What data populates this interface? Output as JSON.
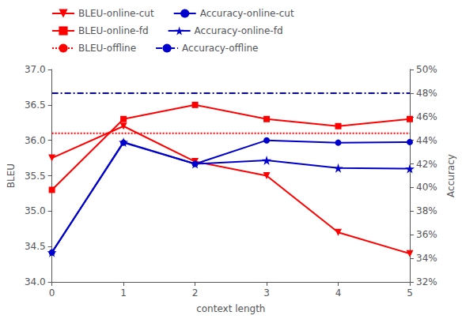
{
  "chart_data": {
    "type": "line",
    "xlabel": "context length",
    "ylabel": "BLEU",
    "y2label": "Accuracy",
    "x": [
      0,
      1,
      2,
      3,
      4,
      5
    ],
    "xlim": [
      0,
      5
    ],
    "xticks": [
      0,
      1,
      2,
      3,
      4,
      5
    ],
    "ylim": [
      34.0,
      37.0
    ],
    "yticks": [
      {
        "value": 34,
        "label": "34.0"
      },
      34.5,
      {
        "value": 35,
        "label": "35.0"
      },
      35.5,
      {
        "value": 36,
        "label": "36.0"
      },
      36.5,
      {
        "value": 37,
        "label": "37.0"
      }
    ],
    "y2lim": [
      32.0,
      50.0
    ],
    "y2ticks": [
      {
        "value": 32,
        "label": "32%"
      },
      {
        "value": 34,
        "label": "34%"
      },
      {
        "value": 36,
        "label": "36%"
      },
      {
        "value": 38,
        "label": "38%"
      },
      {
        "value": 40,
        "label": "40%"
      },
      {
        "value": 42,
        "label": "42%"
      },
      {
        "value": 44,
        "label": "44%"
      },
      {
        "value": 46,
        "label": "46%"
      },
      {
        "value": 48,
        "label": "48%"
      },
      {
        "value": 50,
        "label": "50%"
      }
    ],
    "grid": false,
    "legend": "top",
    "series": [
      {
        "name": "BLEU-online-cut",
        "color": "#ff0000",
        "marker": "triangle_down",
        "line_style": "solid",
        "values": [
          35.75,
          36.2,
          35.7,
          35.5,
          34.7,
          34.4
        ]
      },
      {
        "name": "BLEU-online-fd",
        "color": "#ff0000",
        "marker": "square",
        "line_style": "solid",
        "values": [
          35.3,
          36.3,
          36.5,
          36.3,
          36.2,
          36.3
        ]
      },
      {
        "name": "BLEU-offline",
        "type": "hline",
        "color": "#ff0000",
        "line_style": "dotted",
        "value": 36.1
      },
      {
        "name": "Accuracy-online-cut",
        "axis": "y2",
        "color": "#0000cc",
        "marker": "circle",
        "line_style": "solid",
        "values": [
          34.5,
          43.8,
          42.0,
          44.0,
          43.8,
          43.85
        ]
      },
      {
        "name": "Accuracy-online-fd",
        "axis": "y2",
        "color": "#0000cc",
        "marker": "star",
        "line_style": "solid",
        "values": [
          34.5,
          43.85,
          42.0,
          42.3,
          41.65,
          41.6
        ]
      },
      {
        "name": "Accuracy-offline",
        "axis": "y2",
        "type": "hline",
        "color": "#0000cc",
        "line_style": "dashdot",
        "value": 48.0
      }
    ]
  }
}
